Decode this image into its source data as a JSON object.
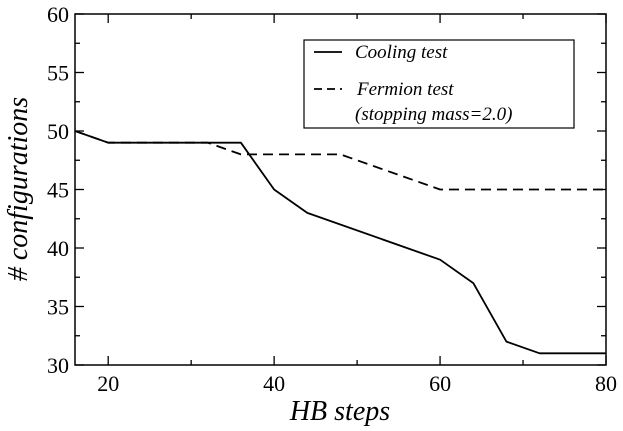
{
  "chart_data": {
    "type": "line",
    "xlabel": "HB steps",
    "ylabel": "# configurations",
    "xlim": [
      16,
      80
    ],
    "ylim": [
      30,
      60
    ],
    "xticks": [
      20,
      40,
      60,
      80
    ],
    "yticks": [
      30,
      35,
      40,
      45,
      50,
      55,
      60
    ],
    "grid": false,
    "legend_position": "top-right",
    "series": [
      {
        "name": "Cooling test",
        "style": "solid",
        "color": "#000000",
        "x": [
          16,
          20,
          36,
          40,
          44,
          60,
          64,
          68,
          72,
          80
        ],
        "y": [
          50,
          49,
          49,
          45,
          43,
          39,
          37,
          32,
          31,
          31
        ]
      },
      {
        "name": "Fermion test",
        "name_line2": "(stopping mass=2.0)",
        "style": "dashed",
        "color": "#000000",
        "x": [
          16,
          20,
          32,
          36,
          48,
          60,
          80
        ],
        "y": [
          50,
          49,
          49,
          48,
          48,
          45,
          45
        ]
      }
    ]
  }
}
